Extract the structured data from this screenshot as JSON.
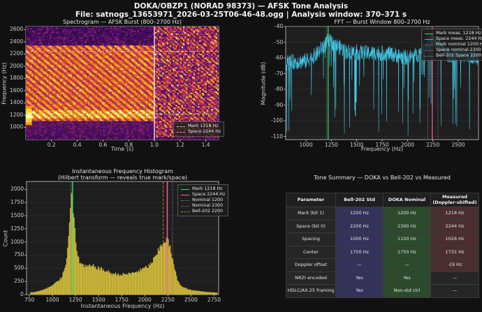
{
  "header": {
    "title": "DOKA/OBZP1 (NORAD 98373) — AFSK Tone Analysis",
    "subtitle": "File: satnogs_13653971_2026-03-25T06-46-48.ogg  |  Analysis window: 370–371 s"
  },
  "colors": {
    "background": "#111111",
    "panel": "#1e1e1e",
    "mark": "#33e07a",
    "space": "#ff5fa0",
    "fft_line": "#43c6e6",
    "histogram": "#cdb83a",
    "bell_col": "#33335a",
    "doka_col": "#2c4a2c",
    "meas_col": "#4a2e2e"
  },
  "chart_data": [
    {
      "type": "heatmap",
      "title": "Spectrogram — AFSK Burst (800–2700 Hz)",
      "xlabel": "Time (s)",
      "ylabel": "Frequency (Hz)",
      "xlim": [
        0.0,
        1.5
      ],
      "ylim": [
        800,
        2650
      ],
      "xticks": [
        0.2,
        0.4,
        0.6,
        0.8,
        1.0,
        1.2,
        1.4
      ],
      "yticks": [
        1000,
        1200,
        1400,
        1600,
        1800,
        2000,
        2200,
        2400,
        2600
      ],
      "colormap": "inferno",
      "regions": [
        {
          "t_start": 0.0,
          "t_end": 0.05,
          "f_low": 1100,
          "f_high": 1300,
          "level": "very high"
        },
        {
          "t_start": 0.05,
          "t_end": 1.0,
          "f_low": 1100,
          "f_high": 2350,
          "level": "banded"
        },
        {
          "t_start": 1.0,
          "t_end": 1.5,
          "f_low": 850,
          "f_high": 2650,
          "level": "noise"
        }
      ],
      "hlines": [
        {
          "name": "Mark 1218 Hz",
          "y": 1218,
          "color": "#a8e060",
          "style": "dashed"
        },
        {
          "name": "Space 2244 Hz",
          "y": 2244,
          "color": "#ff8fb0",
          "style": "dashed"
        }
      ],
      "vlines": [
        {
          "x": 1.0,
          "color": "#ffffff"
        }
      ],
      "legend_position": "lower right"
    },
    {
      "type": "line",
      "title": "FFT — Burst Window 800–2700 Hz",
      "xlabel": "Frequency (Hz)",
      "ylabel": "Magnitude (dB)",
      "xlim": [
        800,
        2700
      ],
      "ylim": [
        -112,
        -40
      ],
      "xticks": [
        1000,
        1250,
        1500,
        1750,
        2000,
        2250,
        2500
      ],
      "yticks": [
        -40,
        -50,
        -60,
        -70,
        -80,
        -90,
        -100,
        -110
      ],
      "series_profile": [
        {
          "x": 800,
          "y": -63
        },
        {
          "x": 1000,
          "y": -62
        },
        {
          "x": 1100,
          "y": -58
        },
        {
          "x": 1218,
          "y": -49
        },
        {
          "x": 1400,
          "y": -56
        },
        {
          "x": 1600,
          "y": -57
        },
        {
          "x": 1800,
          "y": -57
        },
        {
          "x": 2000,
          "y": -60
        },
        {
          "x": 2100,
          "y": -58
        },
        {
          "x": 2244,
          "y": -48
        },
        {
          "x": 2400,
          "y": -58
        },
        {
          "x": 2600,
          "y": -58
        },
        {
          "x": 2700,
          "y": -60
        }
      ],
      "vlines": [
        {
          "name": "Mark meas. 1218 Hz",
          "x": 1218,
          "color": "#33e07a",
          "style": "solid"
        },
        {
          "name": "Space meas. 2244 Hz",
          "x": 2244,
          "color": "#ff5fa0",
          "style": "solid"
        },
        {
          "name": "Mark nominal 1200 Hz",
          "x": 1200,
          "color": "#6a8a6a",
          "style": "dotted"
        },
        {
          "name": "Space nominal 2300 Hz",
          "x": 2300,
          "color": "#9a6a7a",
          "style": "dotted"
        },
        {
          "name": "Bell-202 Space 2200 Hz",
          "x": 2200,
          "color": "#888888",
          "style": "dotted"
        }
      ],
      "legend_position": "upper right"
    },
    {
      "type": "bar",
      "title": "Instantaneous Frequency Histogram",
      "subtitle": "(Hilbert transform — reveals true mark/space)",
      "xlabel": "Instantaneous Frequency (Hz)",
      "ylabel": "Count",
      "xlim": [
        720,
        2800
      ],
      "ylim": [
        0,
        2150
      ],
      "xticks": [
        750,
        1000,
        1250,
        1500,
        1750,
        2000,
        2250,
        2500,
        2750
      ],
      "yticks": [
        0,
        250,
        500,
        750,
        1000,
        1250,
        1500,
        1750,
        2000
      ],
      "bin_width": 10,
      "profile": [
        {
          "x": 800,
          "y": 45
        },
        {
          "x": 900,
          "y": 90
        },
        {
          "x": 1000,
          "y": 170
        },
        {
          "x": 1100,
          "y": 320
        },
        {
          "x": 1160,
          "y": 700
        },
        {
          "x": 1190,
          "y": 1600
        },
        {
          "x": 1210,
          "y": 2150
        },
        {
          "x": 1230,
          "y": 1500
        },
        {
          "x": 1260,
          "y": 850
        },
        {
          "x": 1300,
          "y": 600
        },
        {
          "x": 1350,
          "y": 530
        },
        {
          "x": 1450,
          "y": 540
        },
        {
          "x": 1550,
          "y": 470
        },
        {
          "x": 1650,
          "y": 400
        },
        {
          "x": 1750,
          "y": 380
        },
        {
          "x": 1850,
          "y": 400
        },
        {
          "x": 1950,
          "y": 460
        },
        {
          "x": 2050,
          "y": 550
        },
        {
          "x": 2120,
          "y": 720
        },
        {
          "x": 2180,
          "y": 950
        },
        {
          "x": 2230,
          "y": 1060
        },
        {
          "x": 2260,
          "y": 1000
        },
        {
          "x": 2300,
          "y": 680
        },
        {
          "x": 2350,
          "y": 300
        },
        {
          "x": 2400,
          "y": 150
        },
        {
          "x": 2500,
          "y": 85
        },
        {
          "x": 2650,
          "y": 55
        },
        {
          "x": 2780,
          "y": 35
        }
      ],
      "vlines": [
        {
          "name": "Mark 1218 Hz",
          "x": 1218,
          "color": "#33e07a",
          "style": "solid"
        },
        {
          "name": "Space 2244 Hz",
          "x": 2244,
          "color": "#ff5fa0",
          "style": "solid"
        },
        {
          "name": "Nominal 1200",
          "x": 1200,
          "color": "#7a9a5a",
          "style": "dotted"
        },
        {
          "name": "Nominal 2300",
          "x": 2300,
          "color": "#a06a7a",
          "style": "dotted"
        },
        {
          "name": "Bell-202 2200",
          "x": 2200,
          "color": "#b08a30",
          "style": "dashed"
        }
      ],
      "legend_position": "upper right"
    },
    {
      "type": "table",
      "title": "Tone Summary — DOKA vs Bell-202 vs Measured",
      "columns": [
        "Parameter",
        "Bell-202 Std",
        "DOKA Nominal",
        "Measured (Doppler-shifted)"
      ],
      "rows": [
        [
          "Mark (bit 1)",
          "1200 Hz",
          "1200 Hz",
          "1218 Hz"
        ],
        [
          "Space (bit 0)",
          "2200 Hz",
          "2300 Hz",
          "2244 Hz"
        ],
        [
          "Spacing",
          "1000 Hz",
          "1100 Hz",
          "1026 Hz"
        ],
        [
          "Center",
          "1700 Hz",
          "1750 Hz",
          "1731 Hz"
        ],
        [
          "Doppler offset",
          "—",
          "—",
          "-19 Hz"
        ],
        [
          "NRZI encoded",
          "Yes",
          "Yes",
          "—"
        ],
        [
          "HDLC/AX.25 framing",
          "Yes",
          "Non-std ctrl",
          "—"
        ]
      ]
    }
  ]
}
